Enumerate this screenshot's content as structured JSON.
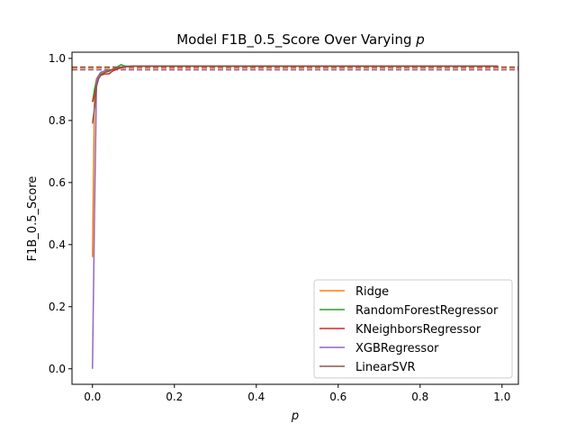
{
  "chart_data": {
    "type": "line",
    "title": "Model F1B_0.5_Score Over Varying ",
    "title_symbol": "p",
    "xlabel": "p",
    "ylabel": "F1B_0.5_Score",
    "xlim": [
      -0.05,
      1.04
    ],
    "ylim": [
      -0.05,
      1.02
    ],
    "xticks": [
      0.0,
      0.2,
      0.4,
      0.6,
      0.8,
      1.0
    ],
    "xtick_labels": [
      "0.0",
      "0.2",
      "0.4",
      "0.6",
      "0.8",
      "1.0"
    ],
    "yticks": [
      0.0,
      0.2,
      0.4,
      0.6,
      0.8,
      1.0
    ],
    "ytick_labels": [
      "0.0",
      "0.2",
      "0.4",
      "0.6",
      "0.8",
      "1.0"
    ],
    "grid": false,
    "legend_position": "lower-right",
    "series": [
      {
        "name": "Ridge",
        "color": "#ff7f0e",
        "x": [
          0.0,
          0.005,
          0.01,
          0.015,
          0.02,
          0.03,
          0.04,
          0.05,
          0.06,
          0.07,
          0.08,
          0.1,
          0.2,
          0.4,
          0.6,
          0.8,
          0.99
        ],
        "y": [
          0.36,
          0.9,
          0.935,
          0.945,
          0.95,
          0.955,
          0.96,
          0.965,
          0.97,
          0.972,
          0.974,
          0.975,
          0.975,
          0.975,
          0.975,
          0.975,
          0.975
        ]
      },
      {
        "name": "RandomForestRegressor",
        "color": "#2ca02c",
        "x": [
          0.0,
          0.005,
          0.01,
          0.015,
          0.02,
          0.03,
          0.04,
          0.05,
          0.06,
          0.07,
          0.08,
          0.1,
          0.2,
          0.4,
          0.6,
          0.8,
          0.99
        ],
        "y": [
          0.86,
          0.9,
          0.93,
          0.945,
          0.95,
          0.955,
          0.958,
          0.965,
          0.972,
          0.98,
          0.975,
          0.975,
          0.975,
          0.975,
          0.975,
          0.975,
          0.975
        ]
      },
      {
        "name": "KNeighborsRegressor",
        "color": "#d62728",
        "x": [
          0.0,
          0.005,
          0.01,
          0.015,
          0.02,
          0.03,
          0.04,
          0.05,
          0.06,
          0.07,
          0.08,
          0.1,
          0.2,
          0.4,
          0.6,
          0.8,
          0.99
        ],
        "y": [
          0.86,
          0.88,
          0.915,
          0.935,
          0.945,
          0.95,
          0.95,
          0.96,
          0.965,
          0.97,
          0.973,
          0.975,
          0.975,
          0.975,
          0.975,
          0.975,
          0.975
        ]
      },
      {
        "name": "XGBRegressor",
        "color": "#9467bd",
        "x": [
          0.0,
          0.005,
          0.01,
          0.015,
          0.02,
          0.03,
          0.04,
          0.05,
          0.06,
          0.07,
          0.08,
          0.1,
          0.2,
          0.4,
          0.6,
          0.8,
          0.99
        ],
        "y": [
          0.0,
          0.5,
          0.93,
          0.945,
          0.955,
          0.96,
          0.962,
          0.965,
          0.97,
          0.972,
          0.973,
          0.975,
          0.975,
          0.975,
          0.975,
          0.975,
          0.975
        ]
      },
      {
        "name": "LinearSVR",
        "color": "#8c564b",
        "x": [
          0.0,
          0.005,
          0.01,
          0.015,
          0.02,
          0.03,
          0.04,
          0.05,
          0.06,
          0.07,
          0.08,
          0.1,
          0.2,
          0.4,
          0.6,
          0.8,
          0.99
        ],
        "y": [
          0.79,
          0.84,
          0.91,
          0.935,
          0.945,
          0.955,
          0.96,
          0.965,
          0.97,
          0.972,
          0.974,
          0.975,
          0.975,
          0.975,
          0.975,
          0.975,
          0.975
        ]
      }
    ],
    "reference_lines": [
      {
        "orientation": "horizontal",
        "y": 0.972,
        "color": "#8c564b",
        "style": "dashed"
      },
      {
        "orientation": "horizontal",
        "y": 0.968,
        "color": "#ff7f0e",
        "style": "dashed"
      },
      {
        "orientation": "horizontal",
        "y": 0.963,
        "color": "#9467bd",
        "style": "dashed"
      }
    ]
  }
}
